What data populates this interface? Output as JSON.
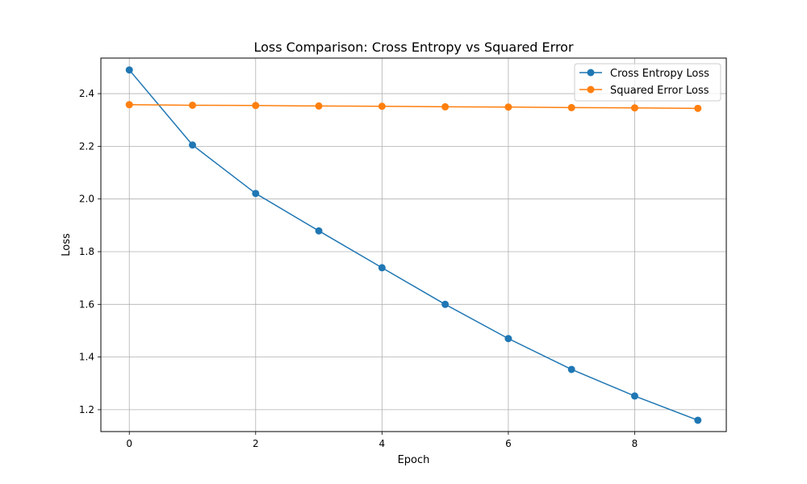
{
  "chart_data": {
    "type": "line",
    "title": "Loss Comparison: Cross Entropy vs Squared Error",
    "xlabel": "Epoch",
    "ylabel": "Loss",
    "x": [
      0,
      1,
      2,
      3,
      4,
      5,
      6,
      7,
      8,
      9
    ],
    "xlim": [
      -0.45,
      9.45
    ],
    "ylim": [
      1.117,
      2.535
    ],
    "xticks": [
      0,
      2,
      4,
      6,
      8
    ],
    "yticks": [
      1.2,
      1.4,
      1.6,
      1.8,
      2.0,
      2.2,
      2.4
    ],
    "xtick_labels": [
      "0",
      "2",
      "4",
      "6",
      "8"
    ],
    "ytick_labels": [
      "1.2",
      "1.4",
      "1.6",
      "1.8",
      "2.0",
      "2.2",
      "2.4"
    ],
    "grid": true,
    "legend_position": "top-right",
    "series": [
      {
        "name": "Cross Entropy Loss",
        "color": "#1f77b4",
        "marker": "circle",
        "values": [
          2.49,
          2.205,
          2.021,
          1.879,
          1.739,
          1.6,
          1.47,
          1.353,
          1.252,
          1.16
        ]
      },
      {
        "name": "Squared Error Loss",
        "color": "#ff7f0e",
        "marker": "circle",
        "values": [
          2.358,
          2.356,
          2.355,
          2.353,
          2.352,
          2.35,
          2.349,
          2.347,
          2.346,
          2.344
        ]
      }
    ]
  }
}
